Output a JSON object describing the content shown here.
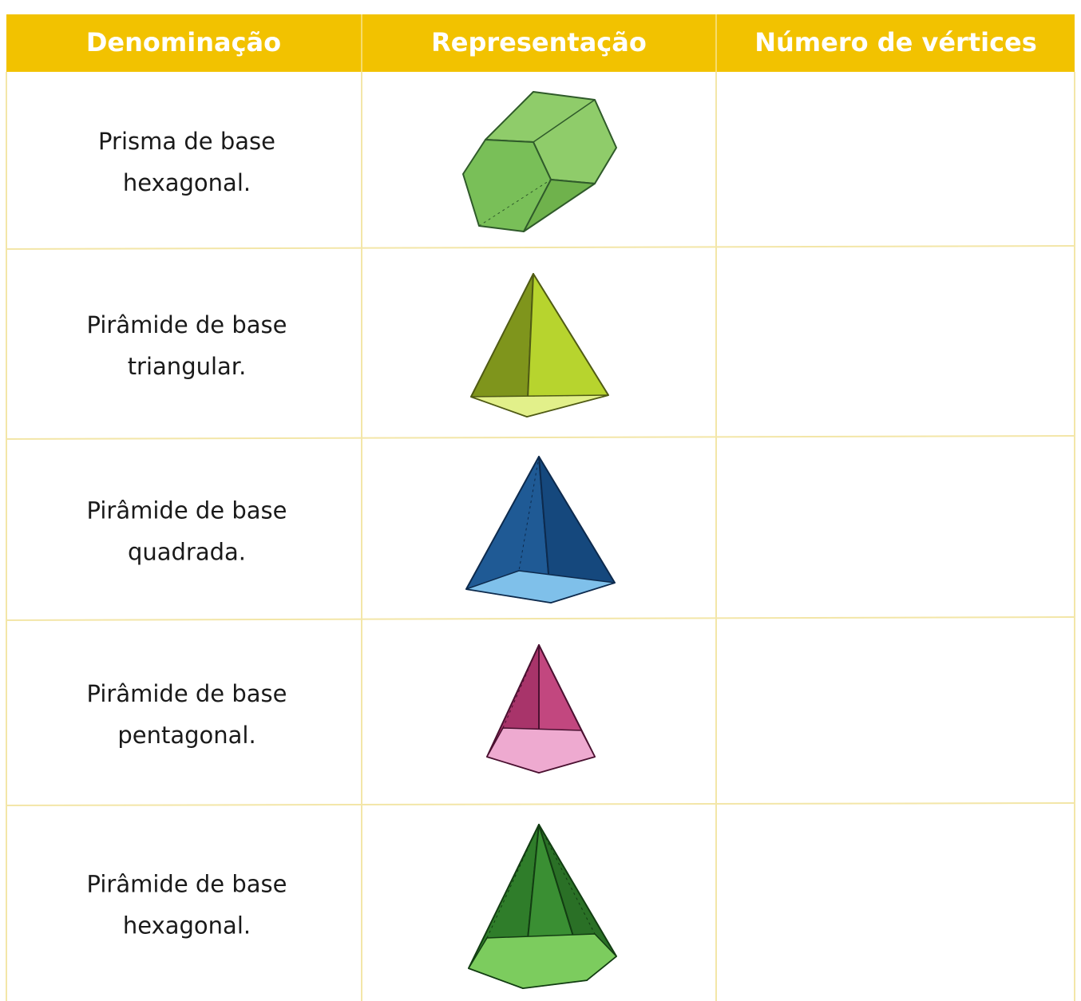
{
  "table": {
    "header": [
      "Denominação",
      "Representação",
      "Número de vértices"
    ],
    "rows": [
      [
        "Prisma de base",
        "hexagonal."
      ],
      [
        "Pirâmide de base",
        "triangular."
      ],
      [
        "Pirâmide de base",
        "quadrada."
      ],
      [
        "Pirâmide de base",
        "pentagonal."
      ],
      [
        "Pirâmide de base",
        "hexagonal."
      ]
    ]
  }
}
